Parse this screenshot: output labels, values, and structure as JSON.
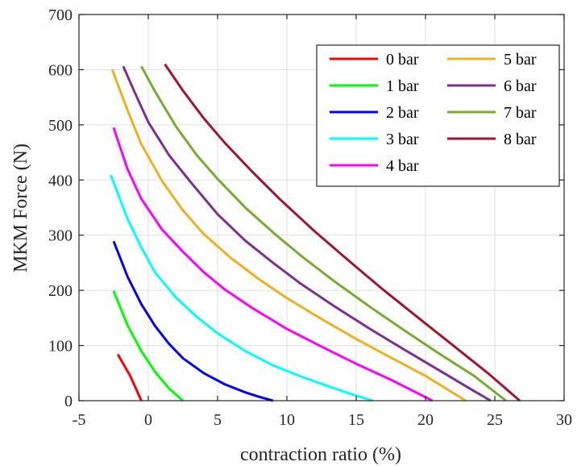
{
  "chart_data": {
    "type": "line",
    "xlabel": "contraction ratio (%)",
    "ylabel": "MKM Force (N)",
    "xlim": [
      -5,
      30
    ],
    "ylim": [
      0,
      700
    ],
    "xticks": [
      -5,
      0,
      5,
      10,
      15,
      20,
      25,
      30
    ],
    "yticks": [
      0,
      100,
      200,
      300,
      400,
      500,
      600,
      700
    ],
    "grid": true,
    "legend_position": "top-right",
    "legend_columns": 2,
    "series": [
      {
        "name": "0 bar",
        "color": "#ff0000",
        "points": [
          [
            -2.2,
            84
          ],
          [
            -1.3,
            45
          ],
          [
            -0.5,
            0
          ]
        ]
      },
      {
        "name": "1 bar",
        "color": "#00ff00",
        "points": [
          [
            -2.5,
            199
          ],
          [
            -1.5,
            137
          ],
          [
            -0.5,
            90
          ],
          [
            0.5,
            52
          ],
          [
            1.5,
            22
          ],
          [
            2.5,
            0
          ]
        ]
      },
      {
        "name": "2 bar",
        "color": "#0000ff",
        "points": [
          [
            -2.5,
            289
          ],
          [
            -1.5,
            225
          ],
          [
            -0.5,
            175
          ],
          [
            0.5,
            135
          ],
          [
            1.5,
            103
          ],
          [
            2.5,
            77
          ],
          [
            4,
            50
          ],
          [
            5.5,
            30
          ],
          [
            7,
            15
          ],
          [
            8,
            7
          ],
          [
            9,
            0
          ]
        ]
      },
      {
        "name": "3 bar",
        "color": "#00ffff",
        "points": [
          [
            -2.7,
            409
          ],
          [
            -1.5,
            330
          ],
          [
            -0.5,
            278
          ],
          [
            0.5,
            232
          ],
          [
            2,
            187
          ],
          [
            3.5,
            152
          ],
          [
            5,
            122
          ],
          [
            7,
            90
          ],
          [
            9,
            64
          ],
          [
            11,
            44
          ],
          [
            13,
            26
          ],
          [
            14.5,
            13
          ],
          [
            16.2,
            0
          ]
        ]
      },
      {
        "name": "4 bar",
        "color": "#ff00ff",
        "points": [
          [
            -2.5,
            495
          ],
          [
            -1.5,
            420
          ],
          [
            -0.5,
            366
          ],
          [
            1,
            310
          ],
          [
            2.5,
            270
          ],
          [
            4,
            233
          ],
          [
            5.5,
            202
          ],
          [
            7.5,
            168
          ],
          [
            10,
            130
          ],
          [
            12.5,
            98
          ],
          [
            15,
            67
          ],
          [
            17.5,
            38
          ],
          [
            20.5,
            0
          ]
        ]
      },
      {
        "name": "5 bar",
        "color": "#edb120",
        "points": [
          [
            -2.6,
            600
          ],
          [
            -1.5,
            527
          ],
          [
            -0.5,
            465
          ],
          [
            1,
            398
          ],
          [
            2.5,
            345
          ],
          [
            4,
            302
          ],
          [
            6,
            258
          ],
          [
            8,
            220
          ],
          [
            10,
            186
          ],
          [
            12.5,
            148
          ],
          [
            15,
            112
          ],
          [
            17.5,
            78
          ],
          [
            20,
            45
          ],
          [
            22.9,
            0
          ]
        ]
      },
      {
        "name": "6 bar",
        "color": "#7e2f8e",
        "points": [
          [
            -1.8,
            606
          ],
          [
            -1,
            560
          ],
          [
            0,
            505
          ],
          [
            1.5,
            445
          ],
          [
            3,
            398
          ],
          [
            5,
            338
          ],
          [
            7,
            290
          ],
          [
            9,
            250
          ],
          [
            11,
            212
          ],
          [
            13.5,
            170
          ],
          [
            16,
            130
          ],
          [
            18.5,
            92
          ],
          [
            21,
            55
          ],
          [
            23,
            25
          ],
          [
            24.7,
            0
          ]
        ]
      },
      {
        "name": "7 bar",
        "color": "#77ac30",
        "points": [
          [
            -0.5,
            606
          ],
          [
            0.5,
            560
          ],
          [
            2,
            497
          ],
          [
            3.5,
            445
          ],
          [
            5,
            402
          ],
          [
            7,
            350
          ],
          [
            9,
            305
          ],
          [
            11,
            263
          ],
          [
            13.5,
            215
          ],
          [
            16,
            170
          ],
          [
            18.5,
            127
          ],
          [
            21,
            85
          ],
          [
            23.5,
            45
          ],
          [
            25.8,
            0
          ]
        ]
      },
      {
        "name": "8 bar",
        "color": "#a2142f",
        "points": [
          [
            1.2,
            610
          ],
          [
            2.5,
            562
          ],
          [
            4,
            512
          ],
          [
            5.5,
            468
          ],
          [
            7.5,
            415
          ],
          [
            9.5,
            365
          ],
          [
            12,
            307
          ],
          [
            14.5,
            253
          ],
          [
            17,
            200
          ],
          [
            19.5,
            150
          ],
          [
            22,
            100
          ],
          [
            24.5,
            50
          ],
          [
            26.8,
            0
          ]
        ]
      }
    ]
  }
}
